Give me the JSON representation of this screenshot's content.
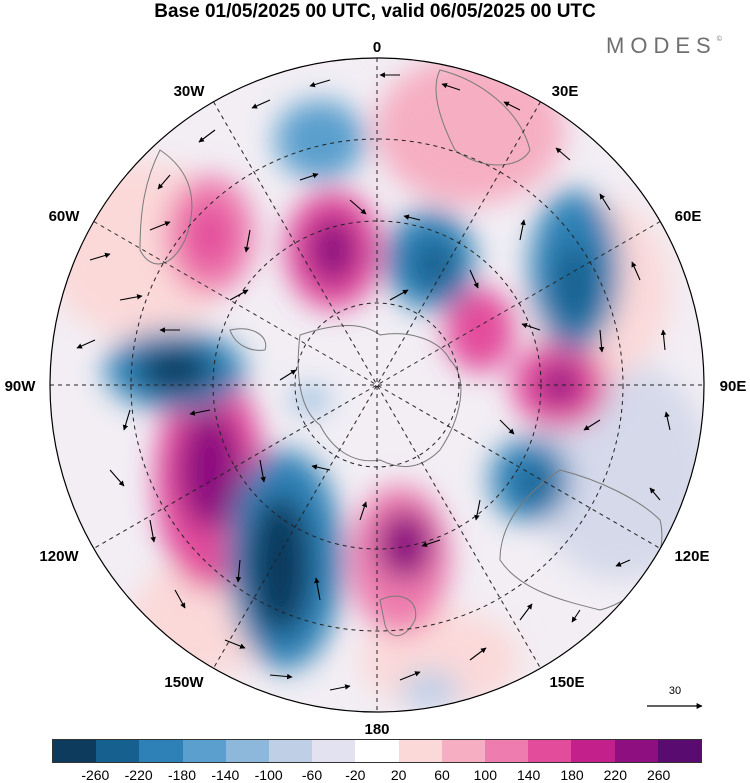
{
  "title": "Base 01/05/2025 00 UTC, valid 06/05/2025 00 UTC",
  "brand": "MODES",
  "brand_mark": "©",
  "longitude_labels": {
    "n": "0",
    "ne30": "30E",
    "ne60": "60E",
    "e90": "90E",
    "e120": "120E",
    "e150": "150E",
    "s180": "180",
    "w150": "150W",
    "w120": "120W",
    "w90": "90W",
    "w60": "60W",
    "w30": "30W"
  },
  "reference_vector": {
    "label": "30"
  },
  "colorbar": {
    "colors": [
      "#0c3b5e",
      "#15608f",
      "#2e81b6",
      "#5a9fcd",
      "#8db8dc",
      "#bfcfe6",
      "#e2e2f0",
      "#ffffff",
      "#fbd9d9",
      "#f6aec2",
      "#ee7cae",
      "#e34c9b",
      "#c4208c",
      "#8e0f80",
      "#5a0b70"
    ],
    "ticks": [
      "-260",
      "-220",
      "-180",
      "-140",
      "-100",
      "-60",
      "-20",
      "20",
      "60",
      "100",
      "140",
      "180",
      "220",
      "260"
    ]
  },
  "anomaly_centers": [
    {
      "sign": "positive",
      "level": 260,
      "lon_lat_desc": "near 10W"
    },
    {
      "sign": "negative",
      "level": -220,
      "lon_lat_desc": "near 30E"
    },
    {
      "sign": "positive",
      "level": 260,
      "lon_lat_desc": "near 100W"
    },
    {
      "sign": "negative",
      "level": -260,
      "lon_lat_desc": "near 140W"
    }
  ]
}
